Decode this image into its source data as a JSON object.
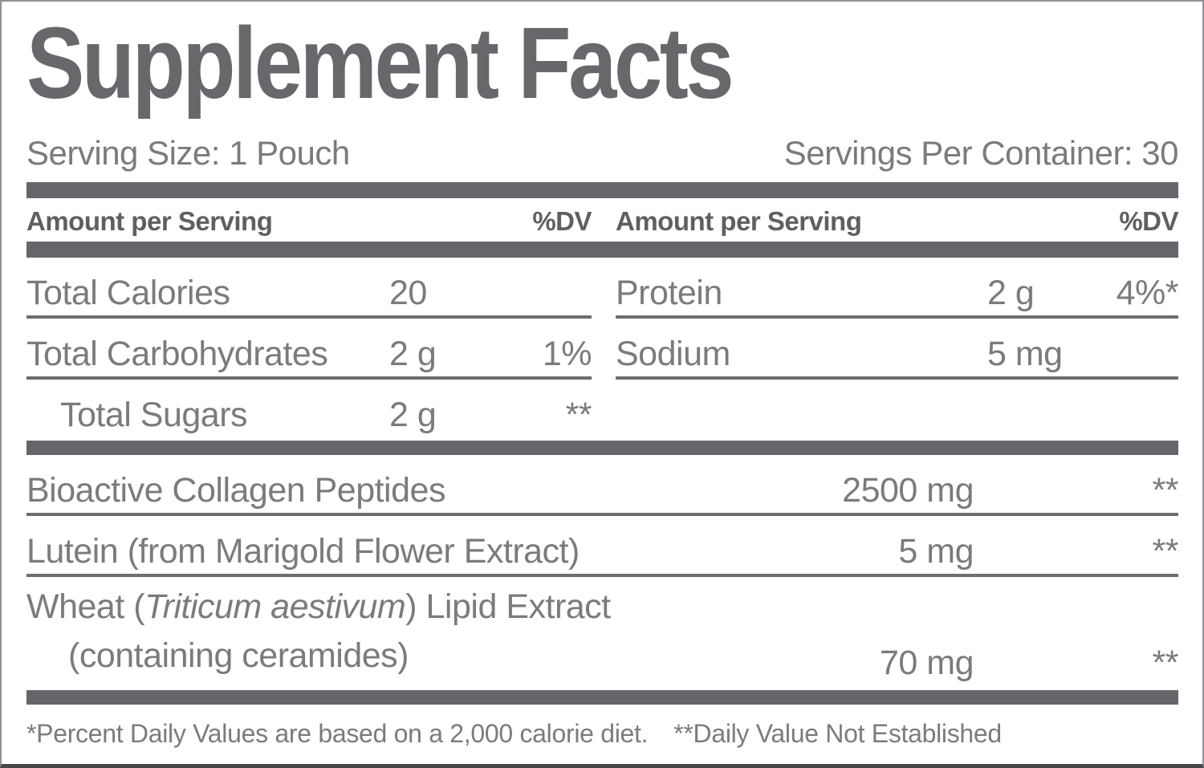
{
  "title": "Supplement Facts",
  "serving_size": "Serving Size: 1 Pouch",
  "servings_per_container": "Servings Per Container: 30",
  "columns": {
    "amount_header": "Amount per Serving",
    "dv_header": "%DV"
  },
  "left_rows": [
    {
      "name": "Total Calories",
      "amount": "20",
      "dv": "",
      "dv_note": ""
    },
    {
      "name": "Total Carbohydrates",
      "amount": "2 g",
      "dv": "1%",
      "dv_note": ""
    },
    {
      "name": "Total Sugars",
      "amount": "2 g",
      "dv": "",
      "dv_note": "**"
    }
  ],
  "right_rows": [
    {
      "name": "Protein",
      "amount": "2 g",
      "dv": "4%",
      "dv_note": "*"
    },
    {
      "name": "Sodium",
      "amount": "5 mg",
      "dv": "",
      "dv_note": ""
    }
  ],
  "ingredient_rows": [
    {
      "name": "Bioactive Collagen Peptides",
      "amount": "2500 mg",
      "dv_note": "**"
    },
    {
      "name": "Lutein (from Marigold Flower Extract)",
      "amount": "5 mg",
      "dv_note": "**"
    },
    {
      "name_prefix": "Wheat (",
      "name_italic": "Triticum aestivum",
      "name_suffix": ") Lipid Extract",
      "name_line2": "(containing ceramides)",
      "amount": "70 mg",
      "dv_note": "**"
    }
  ],
  "footnotes": {
    "percent_dv": "*Percent Daily Values are based on a 2,000 calorie diet.",
    "not_established": "**Daily Value Not Established"
  },
  "colors": {
    "bar_gray": "#64666b",
    "rule_gray": "#6b6d71",
    "text_gray": "#7a7b7f",
    "bold_gray": "#5d5f63",
    "title_gray": "#66686b",
    "border_gray": "#8f9194",
    "border_bottom_dark": "#46484c"
  }
}
